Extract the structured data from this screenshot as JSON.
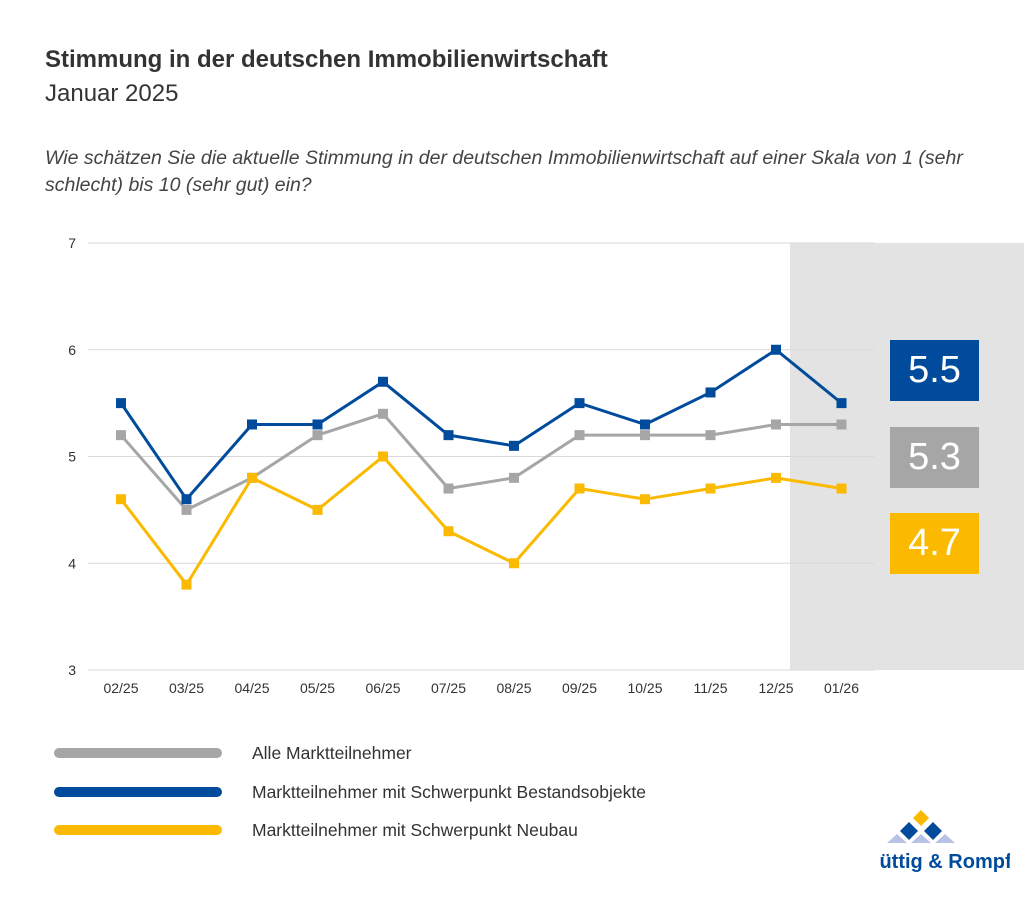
{
  "title": "Stimmung in der deutschen Immobilienwirtschaft",
  "subtitle": "Januar 2025",
  "question": "Wie schätzen Sie die aktuelle Stimmung in der deutschen Immobilienwirtschaft auf einer Skala von 1 (sehr schlecht) bis 10 (sehr gut) ein?",
  "chart_data": {
    "type": "line",
    "categories": [
      "02/25",
      "03/25",
      "04/25",
      "05/25",
      "06/25",
      "07/25",
      "08/25",
      "09/25",
      "10/25",
      "11/25",
      "12/25",
      "01/26"
    ],
    "ylim": [
      3,
      7
    ],
    "yticks": [
      "3",
      "4",
      "5",
      "6",
      "7"
    ],
    "grid": true,
    "highlight_category": "01/26",
    "legend_position": "bottom-left",
    "series": [
      {
        "name": "Alle Marktteilnehmer",
        "color": "#a6a6a6",
        "values": [
          5.2,
          4.5,
          4.8,
          5.2,
          5.4,
          4.7,
          4.8,
          5.2,
          5.2,
          5.2,
          5.3,
          5.3
        ],
        "current_label": "5.3"
      },
      {
        "name": "Marktteilnehmer mit Schwerpunkt Bestandsobjekte",
        "color": "#004b9b",
        "values": [
          5.5,
          4.6,
          5.3,
          5.3,
          5.7,
          5.2,
          5.1,
          5.5,
          5.3,
          5.6,
          6.0,
          5.5
        ],
        "current_label": "5.5"
      },
      {
        "name": "Marktteilnehmer mit Schwerpunkt Neubau",
        "color": "#fbb900",
        "values": [
          4.6,
          3.8,
          4.8,
          4.5,
          5.0,
          4.3,
          4.0,
          4.7,
          4.6,
          4.7,
          4.8,
          4.7
        ],
        "current_label": "4.7"
      }
    ]
  },
  "logo": {
    "text": "Hüttig & Rompf"
  }
}
